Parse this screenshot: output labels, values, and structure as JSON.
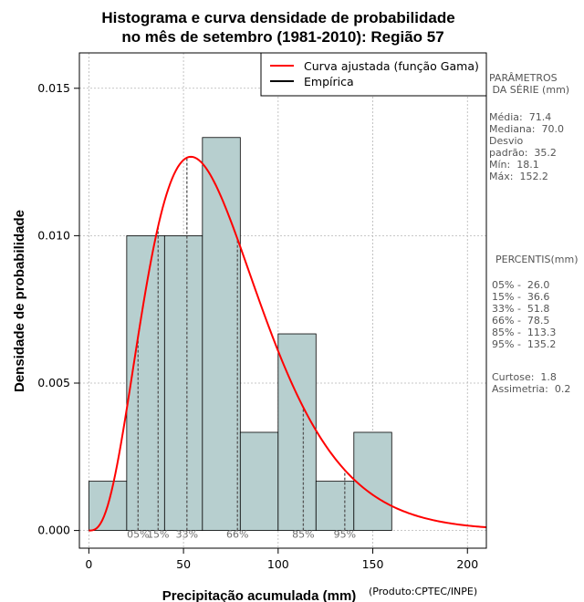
{
  "chart_data": {
    "type": "histogram",
    "title": "Histograma e curva densidade de probabilidade",
    "subtitle": "no mês de setembro (1981-2010): Região 57",
    "xlabel": "Precipitação acumulada (mm)",
    "ylabel": "Densidade de probabilidade",
    "credit": "(Produto:CPTEC/INPE)",
    "xlim": [
      -5,
      210
    ],
    "ylim": [
      -0.0006,
      0.0162
    ],
    "x_ticks": [
      0,
      50,
      100,
      150,
      200
    ],
    "y_ticks": [
      0.0,
      0.005,
      0.01,
      0.015
    ],
    "y_tick_labels": [
      "0.000",
      "0.005",
      "0.010",
      "0.015"
    ],
    "grid": true,
    "bins": [
      {
        "start": 0,
        "end": 20,
        "density": 0.00167
      },
      {
        "start": 20,
        "end": 40,
        "density": 0.01
      },
      {
        "start": 40,
        "end": 60,
        "density": 0.01
      },
      {
        "start": 60,
        "end": 80,
        "density": 0.01333
      },
      {
        "start": 80,
        "end": 100,
        "density": 0.00333
      },
      {
        "start": 100,
        "end": 120,
        "density": 0.00667
      },
      {
        "start": 120,
        "end": 140,
        "density": 0.00167
      },
      {
        "start": 140,
        "end": 160,
        "density": 0.00333
      }
    ],
    "bar_color": "#b7cfcf",
    "curve": {
      "name": "Curva ajustada (função Gama)",
      "shape": 4.1,
      "scale": 17.4,
      "color": "#ff0000"
    },
    "legend": [
      {
        "label": "Curva ajustada (função Gama)",
        "color": "#ff0000"
      },
      {
        "label": "Empírica",
        "color": "#000000"
      }
    ],
    "legend_position": "top-right",
    "percentile_lines": [
      {
        "label": "05%",
        "value": 26.0
      },
      {
        "label": "15%",
        "value": 36.6
      },
      {
        "label": "33%",
        "value": 51.8
      },
      {
        "label": "66%",
        "value": 78.5
      },
      {
        "label": "85%",
        "value": 113.3
      },
      {
        "label": "95%",
        "value": 135.2
      }
    ]
  },
  "side_panel": {
    "params_title": "PARÂMETROS\n DA SÉRIE (mm)",
    "stats": "Média:  71.4\nMediana:  70.0\nDesvio\npadrão:  35.2\nMín:  18.1\nMáx:  152.2",
    "percentis_title": "PERCENTIS(mm)",
    "percentis": "05% -  26.0\n15% -  36.6\n33% -  51.8\n66% -  78.5\n85% -  113.3\n95% -  135.2",
    "shape_stats": "Curtose:  1.8\nAssimetria:  0.2"
  }
}
